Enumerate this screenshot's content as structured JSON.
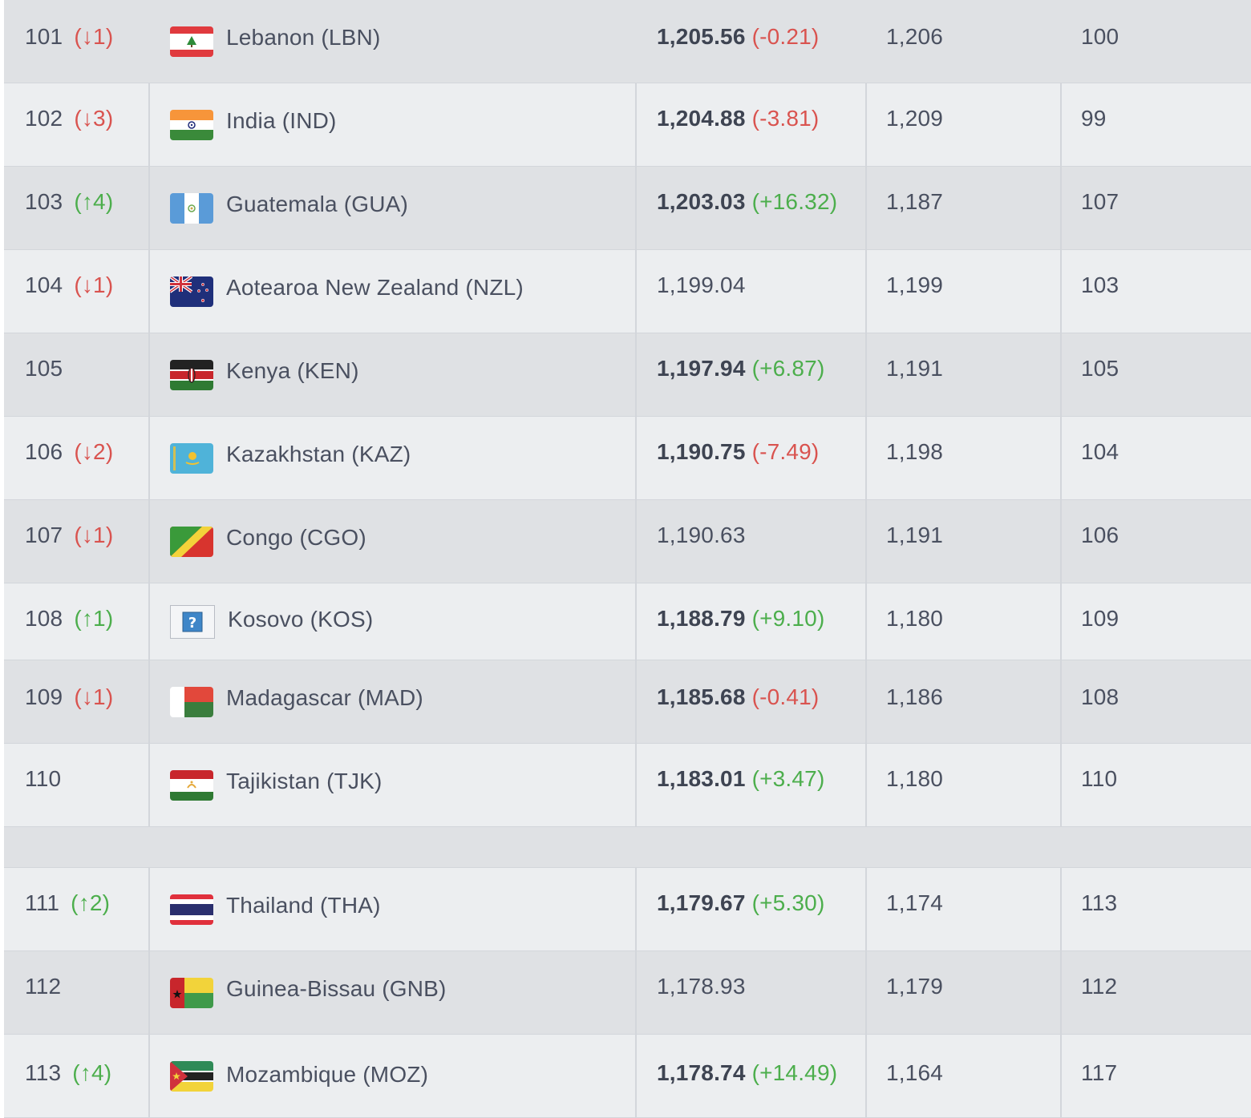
{
  "rows": [
    {
      "rank": "101",
      "change": "(↓1)",
      "dir": "down",
      "country": "Lebanon (LBN)",
      "points": "1,205.56",
      "points_change": "(-0.21)",
      "pc_dir": "down",
      "bold": true,
      "prev_points": "1,206",
      "prev_rank": "100",
      "flag": "lebanon-flag-icon"
    },
    {
      "rank": "102",
      "change": "(↓3)",
      "dir": "down",
      "country": "India (IND)",
      "points": "1,204.88",
      "points_change": "(-3.81)",
      "pc_dir": "down",
      "bold": true,
      "prev_points": "1,209",
      "prev_rank": "99",
      "flag": "india-flag-icon"
    },
    {
      "rank": "103",
      "change": "(↑4)",
      "dir": "up",
      "country": "Guatemala (GUA)",
      "points": "1,203.03",
      "points_change": "(+16.32)",
      "pc_dir": "up",
      "bold": true,
      "prev_points": "1,187",
      "prev_rank": "107",
      "flag": "guatemala-flag-icon"
    },
    {
      "rank": "104",
      "change": "(↓1)",
      "dir": "down",
      "country": "Aotearoa New Zealand (NZL)",
      "points": "1,199.04",
      "points_change": "",
      "pc_dir": "",
      "bold": false,
      "prev_points": "1,199",
      "prev_rank": "103",
      "flag": "new-zealand-flag-icon"
    },
    {
      "rank": "105",
      "change": "",
      "dir": "",
      "country": "Kenya (KEN)",
      "points": "1,197.94",
      "points_change": "(+6.87)",
      "pc_dir": "up",
      "bold": true,
      "prev_points": "1,191",
      "prev_rank": "105",
      "flag": "kenya-flag-icon"
    },
    {
      "rank": "106",
      "change": "(↓2)",
      "dir": "down",
      "country": "Kazakhstan (KAZ)",
      "points": "1,190.75",
      "points_change": "(-7.49)",
      "pc_dir": "down",
      "bold": true,
      "prev_points": "1,198",
      "prev_rank": "104",
      "flag": "kazakhstan-flag-icon"
    },
    {
      "rank": "107",
      "change": "(↓1)",
      "dir": "down",
      "country": "Congo (CGO)",
      "points": "1,190.63",
      "points_change": "",
      "pc_dir": "",
      "bold": false,
      "prev_points": "1,191",
      "prev_rank": "106",
      "flag": "congo-flag-icon"
    },
    {
      "rank": "108",
      "change": "(↑1)",
      "dir": "up",
      "country": "Kosovo (KOS)",
      "points": "1,188.79",
      "points_change": "(+9.10)",
      "pc_dir": "up",
      "bold": true,
      "prev_points": "1,180",
      "prev_rank": "109",
      "flag": "unknown-flag-icon"
    },
    {
      "rank": "109",
      "change": "(↓1)",
      "dir": "down",
      "country": "Madagascar (MAD)",
      "points": "1,185.68",
      "points_change": "(-0.41)",
      "pc_dir": "down",
      "bold": true,
      "prev_points": "1,186",
      "prev_rank": "108",
      "flag": "madagascar-flag-icon"
    },
    {
      "rank": "110",
      "change": "",
      "dir": "",
      "country": "Tajikistan (TJK)",
      "points": "1,183.01",
      "points_change": "(+3.47)",
      "pc_dir": "up",
      "bold": true,
      "prev_points": "1,180",
      "prev_rank": "110",
      "flag": "tajikistan-flag-icon"
    },
    {
      "rank": "111",
      "change": "(↑2)",
      "dir": "up",
      "country": "Thailand (THA)",
      "points": "1,179.67",
      "points_change": "(+5.30)",
      "pc_dir": "up",
      "bold": true,
      "prev_points": "1,174",
      "prev_rank": "113",
      "flag": "thailand-flag-icon"
    },
    {
      "rank": "112",
      "change": "",
      "dir": "",
      "country": "Guinea-Bissau (GNB)",
      "points": "1,178.93",
      "points_change": "",
      "pc_dir": "",
      "bold": false,
      "prev_points": "1,179",
      "prev_rank": "112",
      "flag": "guinea-bissau-flag-icon"
    },
    {
      "rank": "113",
      "change": "(↑4)",
      "dir": "up",
      "country": "Mozambique (MOZ)",
      "points": "1,178.74",
      "points_change": "(+14.49)",
      "pc_dir": "up",
      "bold": true,
      "prev_points": "1,164",
      "prev_rank": "117",
      "flag": "mozambique-flag-icon"
    }
  ],
  "colors": {
    "down": "#d9534f",
    "up": "#4cae4c",
    "row_odd": "#dfe1e4",
    "row_even": "#eceef0"
  }
}
